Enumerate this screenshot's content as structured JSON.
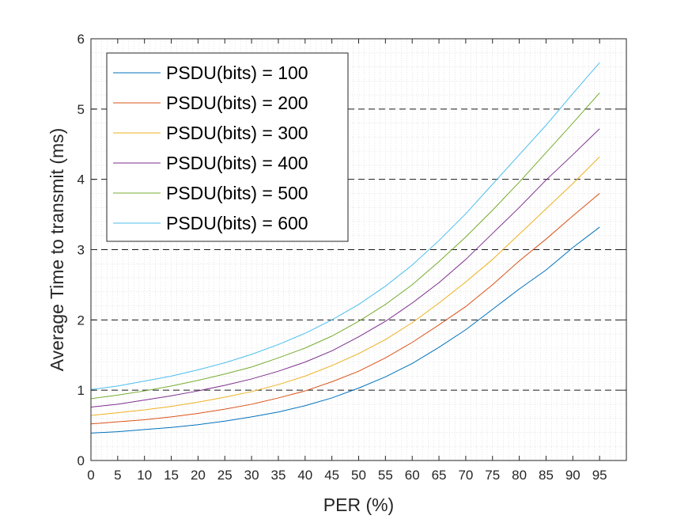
{
  "chart_data": {
    "type": "line",
    "xlabel": "PER (%)",
    "ylabel": "Average Time to transmit (ms)",
    "xlim": [
      0,
      100
    ],
    "ylim": [
      0,
      6
    ],
    "xticks": [
      0,
      5,
      10,
      15,
      20,
      25,
      30,
      35,
      40,
      45,
      50,
      55,
      60,
      65,
      70,
      75,
      80,
      85,
      90,
      95
    ],
    "yticks": [
      0,
      1,
      2,
      3,
      4,
      5,
      6
    ],
    "grid": "minor-dotted",
    "reference_lines": [
      1,
      2,
      3,
      4,
      5
    ],
    "legend_position": "top-left",
    "x": [
      0,
      5,
      10,
      15,
      20,
      25,
      30,
      35,
      40,
      45,
      50,
      55,
      60,
      65,
      70,
      75,
      80,
      85,
      90,
      95
    ],
    "series": [
      {
        "name": "PSDU(bits) = 100",
        "color": "#0072BD",
        "values": [
          0.39,
          0.41,
          0.44,
          0.47,
          0.51,
          0.56,
          0.62,
          0.69,
          0.78,
          0.89,
          1.03,
          1.19,
          1.38,
          1.61,
          1.86,
          2.15,
          2.44,
          2.71,
          3.03,
          3.32
        ]
      },
      {
        "name": "PSDU(bits) = 200",
        "color": "#D95319",
        "values": [
          0.52,
          0.55,
          0.58,
          0.62,
          0.67,
          0.73,
          0.8,
          0.89,
          0.99,
          1.12,
          1.27,
          1.46,
          1.68,
          1.93,
          2.19,
          2.5,
          2.84,
          3.15,
          3.48,
          3.8
        ]
      },
      {
        "name": "PSDU(bits) = 300",
        "color": "#EDB120",
        "values": [
          0.64,
          0.68,
          0.72,
          0.77,
          0.83,
          0.9,
          0.98,
          1.08,
          1.2,
          1.35,
          1.52,
          1.72,
          1.96,
          2.24,
          2.54,
          2.86,
          3.22,
          3.58,
          3.94,
          4.32
        ]
      },
      {
        "name": "PSDU(bits) = 400",
        "color": "#7E2F8E",
        "values": [
          0.76,
          0.8,
          0.86,
          0.92,
          0.99,
          1.07,
          1.16,
          1.27,
          1.4,
          1.56,
          1.76,
          1.98,
          2.24,
          2.53,
          2.86,
          3.23,
          3.6,
          3.99,
          4.35,
          4.72
        ]
      },
      {
        "name": "PSDU(bits) = 500",
        "color": "#77AC30",
        "values": [
          0.88,
          0.93,
          0.99,
          1.06,
          1.14,
          1.23,
          1.33,
          1.46,
          1.6,
          1.77,
          1.98,
          2.22,
          2.5,
          2.83,
          3.18,
          3.56,
          3.96,
          4.38,
          4.8,
          5.23
        ]
      },
      {
        "name": "PSDU(bits) = 600",
        "color": "#4DBEEE",
        "values": [
          1.01,
          1.06,
          1.13,
          1.2,
          1.29,
          1.39,
          1.51,
          1.65,
          1.81,
          2.0,
          2.22,
          2.48,
          2.78,
          3.13,
          3.51,
          3.93,
          4.35,
          4.77,
          5.22,
          5.66
        ]
      }
    ]
  }
}
